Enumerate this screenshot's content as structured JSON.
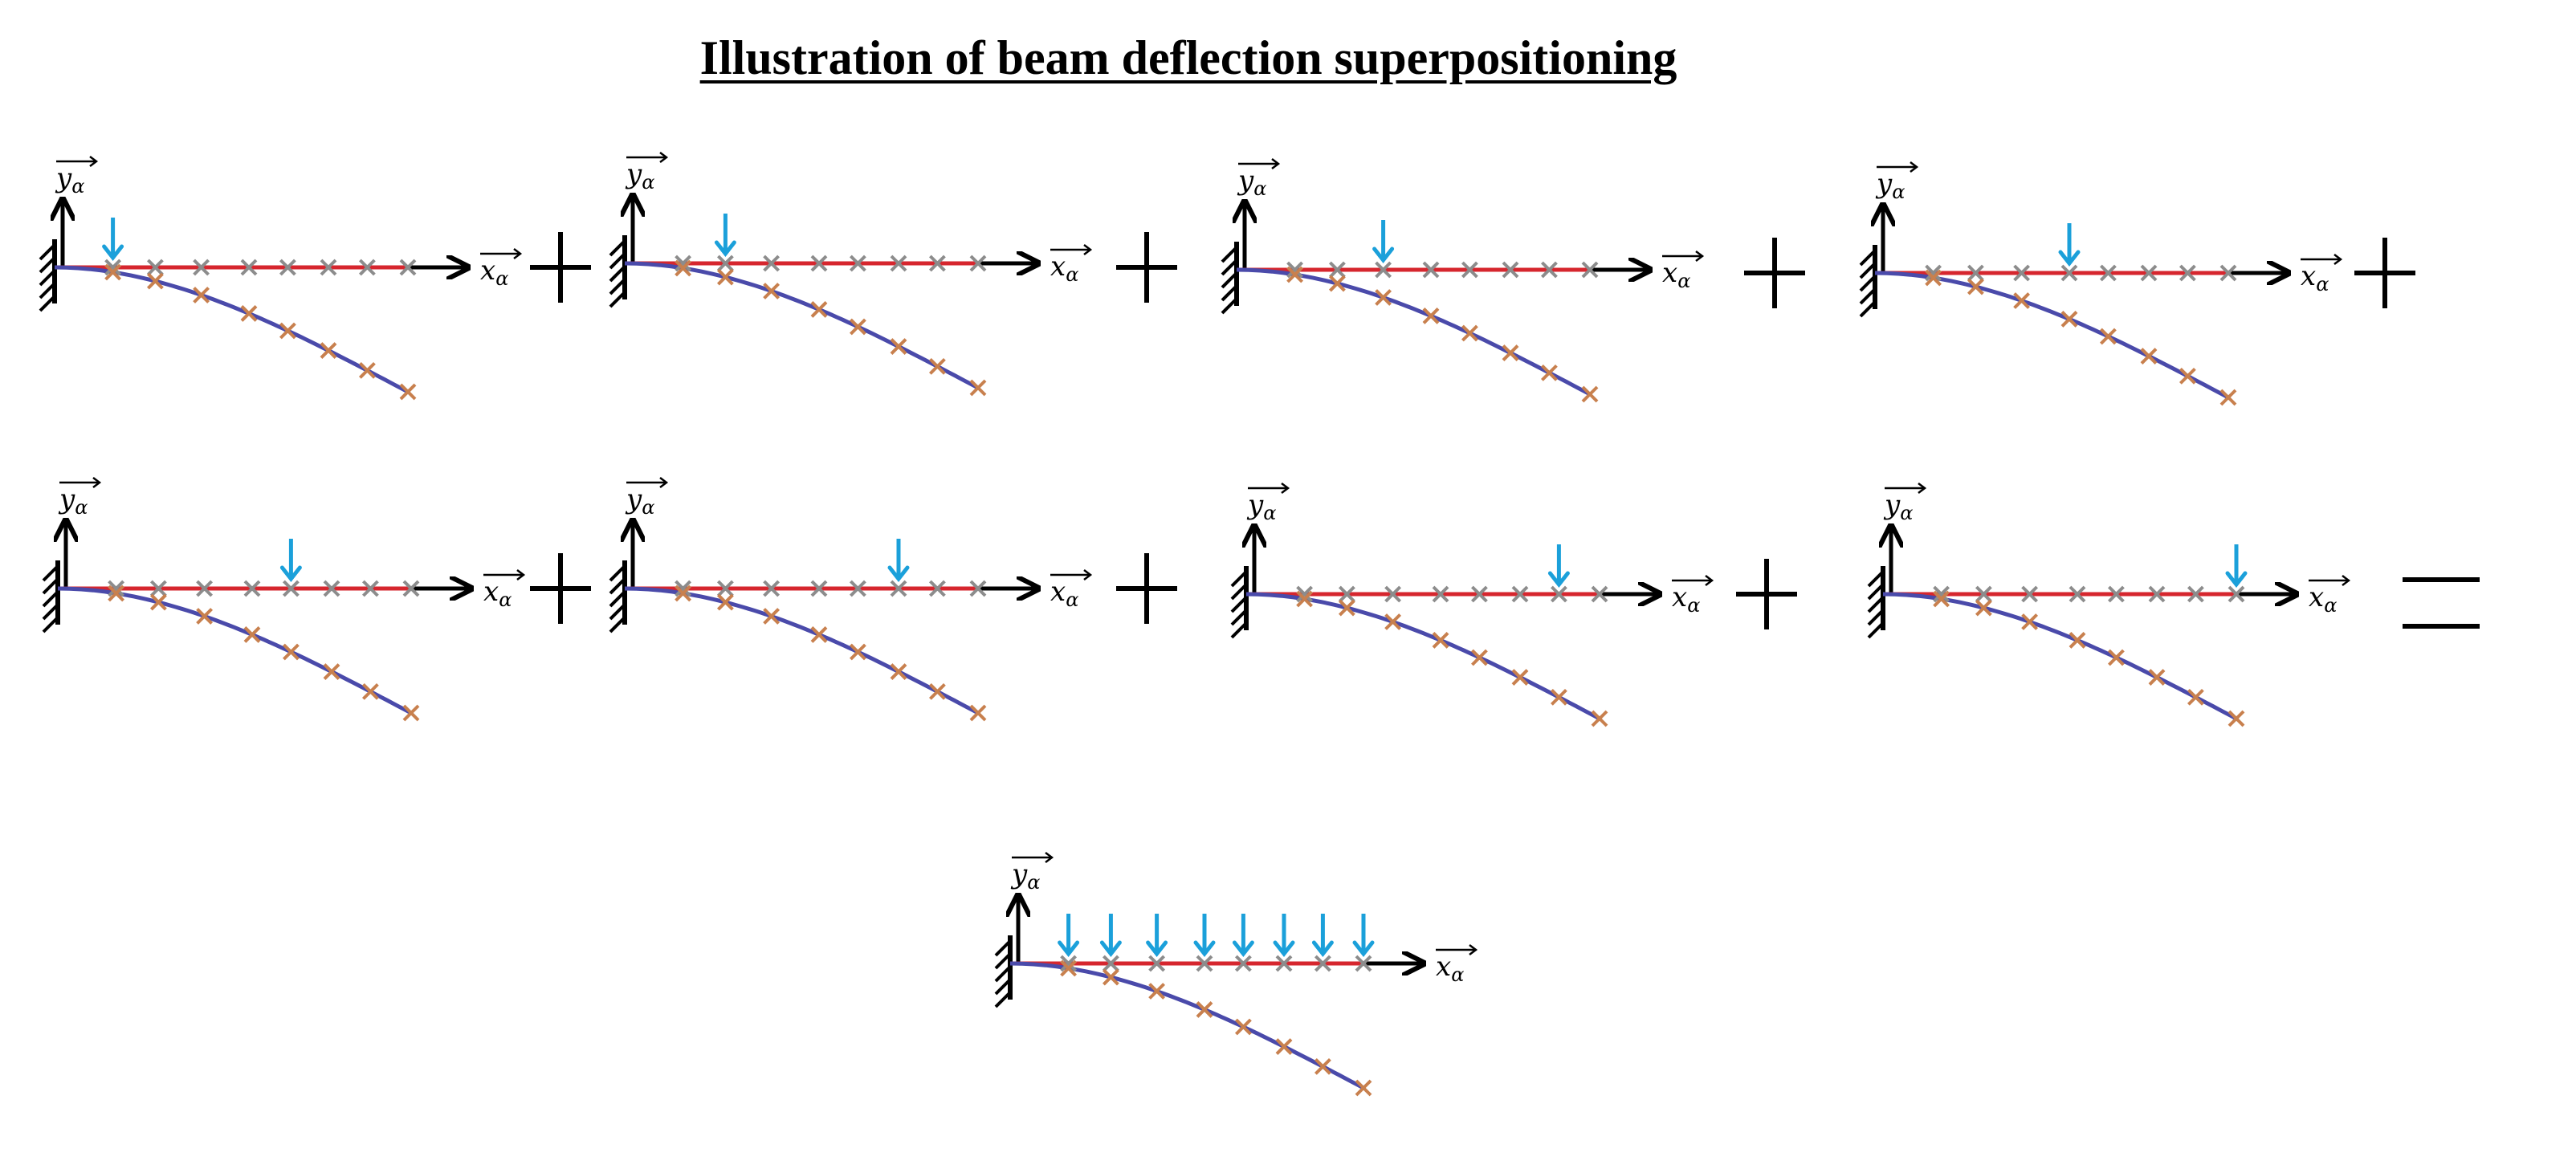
{
  "title": "Illustration of beam deflection superpositioning",
  "axes": {
    "x_label": "x",
    "y_label": "y",
    "subscript": "α"
  },
  "operators": [
    "+",
    "+",
    "+",
    "+",
    "+",
    "+",
    "+",
    "="
  ],
  "colors": {
    "undeformed_beam": "#d6262e",
    "deflected_beam": "#4a4aaa",
    "node_marker_undeformed": "#8c8c8c",
    "node_marker_deflected": "#c8804e",
    "load_arrow": "#1ba0da",
    "axis": "#000000"
  },
  "beam": {
    "node_count": 9,
    "deflection_shape": "cantilever-bending-downward"
  },
  "panels": [
    {
      "load_nodes": [
        1
      ]
    },
    {
      "load_nodes": [
        2
      ]
    },
    {
      "load_nodes": [
        3
      ]
    },
    {
      "load_nodes": [
        4
      ]
    },
    {
      "load_nodes": [
        5
      ]
    },
    {
      "load_nodes": [
        6
      ]
    },
    {
      "load_nodes": [
        7
      ]
    },
    {
      "load_nodes": [
        8
      ]
    }
  ],
  "result": {
    "load_nodes": [
      1,
      2,
      3,
      4,
      5,
      6,
      7,
      8
    ]
  }
}
